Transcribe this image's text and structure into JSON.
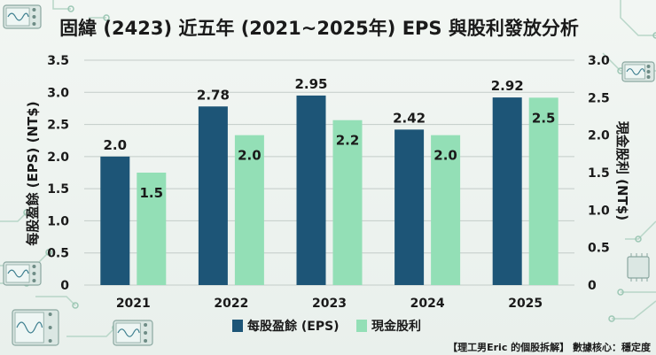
{
  "title": "固緯 (2423) 近五年 (2021~2025年) EPS 與股利發放分析",
  "watermark": "【理工男Eric 的個股拆解】 數據核心：穩定度",
  "colors": {
    "eps": "#1d5577",
    "dividend": "#93dfb6",
    "grid": "#c3ccc8",
    "text": "#1a1a1a",
    "decor_line": "#b8d6c8",
    "decor_dot": "#9cc7b4"
  },
  "chart_data": {
    "type": "bar",
    "title": "固緯 (2423) 近五年 (2021~2025年) EPS 與股利發放分析",
    "categories": [
      "2021",
      "2022",
      "2023",
      "2024",
      "2025"
    ],
    "series": [
      {
        "name": "每股盈餘 (EPS)",
        "axis": "left",
        "values": [
          2.0,
          2.78,
          2.95,
          2.42,
          2.92
        ],
        "labels": [
          "2.0",
          "2.78",
          "2.95",
          "2.42",
          "2.92"
        ]
      },
      {
        "name": "現金股利",
        "axis": "right",
        "values": [
          1.5,
          2.0,
          2.2,
          2.0,
          2.5
        ],
        "labels": [
          "1.5",
          "2.0",
          "2.2",
          "2.0",
          "2.5"
        ]
      }
    ],
    "ylabel": "每股盈餘 (EPS) (NT$)",
    "y2label": "現金股利 (NT$)",
    "ylim": [
      0,
      3.5
    ],
    "y2lim": [
      0,
      3.0
    ],
    "yticks": [
      "0",
      "0.5",
      "1.0",
      "1.5",
      "2.0",
      "2.5",
      "3.0",
      "3.5"
    ],
    "y2ticks": [
      "0",
      "0.5",
      "1.0",
      "1.5",
      "2.0",
      "2.5",
      "3.0"
    ],
    "grid": true,
    "legend": "bottom-center"
  }
}
